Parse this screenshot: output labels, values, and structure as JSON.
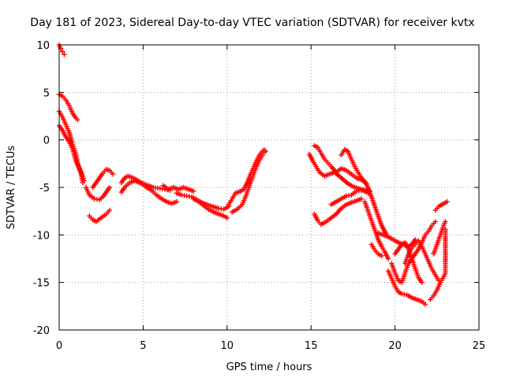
{
  "chart_data": {
    "type": "scatter",
    "title": "Day 181 of 2023, Sidereal Day-to-day VTEC variation (SDTVAR) for receiver kvtx",
    "xlabel": "GPS time / hours",
    "ylabel": "SDTVAR / TECUs",
    "xlim": [
      0,
      25
    ],
    "ylim": [
      -20,
      10
    ],
    "xticks": [
      "0",
      "5",
      "10",
      "15",
      "20",
      "25"
    ],
    "yticks": [
      "10",
      "5",
      "0",
      "-5",
      "-10",
      "-15",
      "-20"
    ],
    "grid": true,
    "marker": "plus",
    "color": "#ff0000",
    "series": [
      {
        "values": [
          [
            0.0,
            10.0
          ],
          [
            0.1,
            9.6
          ],
          [
            0.2,
            9.3
          ],
          [
            0.3,
            9.0
          ]
        ]
      },
      {
        "values": [
          [
            0.0,
            4.8
          ],
          [
            0.2,
            4.6
          ],
          [
            0.4,
            4.2
          ],
          [
            0.6,
            3.6
          ],
          [
            0.8,
            2.8
          ],
          [
            1.0,
            2.3
          ],
          [
            1.1,
            2.1
          ]
        ]
      },
      {
        "values": [
          [
            0.0,
            3.0
          ],
          [
            0.2,
            2.4
          ],
          [
            0.4,
            1.6
          ],
          [
            0.6,
            0.8
          ],
          [
            0.8,
            -0.5
          ],
          [
            1.0,
            -1.5
          ],
          [
            1.1,
            -2.5
          ],
          [
            1.3,
            -3.5
          ],
          [
            1.4,
            -4.5
          ]
        ]
      },
      {
        "values": [
          [
            0.0,
            1.5
          ],
          [
            0.2,
            1.0
          ],
          [
            0.4,
            0.3
          ],
          [
            0.6,
            -0.2
          ],
          [
            0.8,
            -1.0
          ],
          [
            1.0,
            -2.2
          ],
          [
            1.2,
            -3.0
          ],
          [
            1.4,
            -3.8
          ],
          [
            1.5,
            -4.3
          ]
        ]
      },
      {
        "values": [
          [
            1.6,
            -5.0
          ],
          [
            1.8,
            -5.8
          ],
          [
            2.1,
            -6.2
          ],
          [
            2.4,
            -6.3
          ],
          [
            2.6,
            -6.0
          ],
          [
            2.8,
            -5.5
          ],
          [
            3.0,
            -5.0
          ]
        ]
      },
      {
        "values": [
          [
            2.0,
            -5.0
          ],
          [
            2.2,
            -4.5
          ],
          [
            2.4,
            -4.0
          ],
          [
            2.6,
            -3.5
          ],
          [
            2.8,
            -3.1
          ],
          [
            3.0,
            -3.2
          ],
          [
            3.2,
            -3.6
          ]
        ]
      },
      {
        "values": [
          [
            1.8,
            -8.0
          ],
          [
            2.0,
            -8.4
          ],
          [
            2.2,
            -8.6
          ],
          [
            2.5,
            -8.2
          ],
          [
            2.8,
            -7.8
          ],
          [
            3.0,
            -7.4
          ]
        ]
      },
      {
        "values": [
          [
            3.7,
            -4.5
          ],
          [
            3.9,
            -4.0
          ],
          [
            4.1,
            -3.8
          ],
          [
            4.4,
            -4.0
          ],
          [
            4.7,
            -4.3
          ],
          [
            5.0,
            -4.6
          ],
          [
            5.3,
            -4.8
          ],
          [
            5.6,
            -5.0
          ],
          [
            6.0,
            -5.1
          ],
          [
            6.3,
            -5.2
          ],
          [
            6.6,
            -5.3
          ]
        ]
      },
      {
        "values": [
          [
            3.7,
            -5.5
          ],
          [
            3.9,
            -5.0
          ],
          [
            4.2,
            -4.5
          ],
          [
            4.5,
            -4.3
          ],
          [
            4.9,
            -4.6
          ],
          [
            5.2,
            -5.0
          ],
          [
            5.5,
            -5.3
          ],
          [
            5.8,
            -5.8
          ],
          [
            6.1,
            -6.2
          ],
          [
            6.4,
            -6.5
          ],
          [
            6.7,
            -6.7
          ],
          [
            7.0,
            -6.5
          ]
        ]
      },
      {
        "values": [
          [
            6.2,
            -4.8
          ],
          [
            6.5,
            -5.2
          ],
          [
            6.8,
            -5.0
          ],
          [
            7.1,
            -5.2
          ],
          [
            7.4,
            -5.0
          ],
          [
            7.7,
            -5.2
          ],
          [
            8.0,
            -5.4
          ]
        ]
      },
      {
        "values": [
          [
            7.0,
            -5.6
          ],
          [
            7.3,
            -5.8
          ],
          [
            7.6,
            -5.9
          ],
          [
            7.9,
            -6.0
          ],
          [
            8.2,
            -6.3
          ],
          [
            8.5,
            -6.6
          ],
          [
            8.8,
            -6.8
          ],
          [
            9.1,
            -7.0
          ],
          [
            9.5,
            -7.2
          ],
          [
            9.8,
            -7.3
          ],
          [
            10.1,
            -7.0
          ]
        ]
      },
      {
        "values": [
          [
            8.0,
            -6.2
          ],
          [
            8.3,
            -6.5
          ],
          [
            8.6,
            -6.9
          ],
          [
            8.9,
            -7.3
          ],
          [
            9.2,
            -7.6
          ],
          [
            9.5,
            -7.8
          ],
          [
            9.8,
            -8.0
          ],
          [
            10.0,
            -8.2
          ]
        ]
      },
      {
        "values": [
          [
            10.1,
            -6.8
          ],
          [
            10.3,
            -6.2
          ],
          [
            10.5,
            -5.6
          ],
          [
            10.8,
            -5.4
          ],
          [
            11.0,
            -5.2
          ],
          [
            11.2,
            -4.5
          ],
          [
            11.4,
            -3.6
          ],
          [
            11.6,
            -2.8
          ],
          [
            11.8,
            -2.0
          ],
          [
            12.0,
            -1.4
          ],
          [
            12.2,
            -1.0
          ],
          [
            12.3,
            -1.2
          ]
        ]
      },
      {
        "values": [
          [
            10.3,
            -7.6
          ],
          [
            10.6,
            -7.3
          ],
          [
            10.9,
            -6.8
          ],
          [
            11.1,
            -6.0
          ],
          [
            11.3,
            -5.0
          ],
          [
            11.5,
            -4.0
          ],
          [
            11.7,
            -3.0
          ],
          [
            11.9,
            -2.2
          ],
          [
            12.1,
            -1.6
          ],
          [
            12.2,
            -1.3
          ]
        ]
      },
      {
        "values": [
          [
            15.2,
            -0.6
          ],
          [
            15.4,
            -0.8
          ],
          [
            15.6,
            -1.4
          ],
          [
            15.8,
            -2.0
          ],
          [
            16.0,
            -2.4
          ],
          [
            16.2,
            -2.8
          ],
          [
            16.5,
            -3.4
          ],
          [
            16.8,
            -3.0
          ],
          [
            17.1,
            -3.2
          ],
          [
            17.4,
            -3.6
          ],
          [
            17.7,
            -4.0
          ],
          [
            18.0,
            -4.2
          ],
          [
            18.3,
            -4.6
          ]
        ]
      },
      {
        "values": [
          [
            14.9,
            -1.5
          ],
          [
            15.1,
            -2.2
          ],
          [
            15.3,
            -2.8
          ],
          [
            15.5,
            -3.4
          ],
          [
            15.8,
            -3.8
          ],
          [
            16.1,
            -3.6
          ],
          [
            16.4,
            -3.4
          ],
          [
            16.8,
            -4.0
          ],
          [
            17.2,
            -4.6
          ],
          [
            17.6,
            -5.0
          ],
          [
            18.0,
            -5.2
          ],
          [
            18.4,
            -5.6
          ]
        ]
      },
      {
        "values": [
          [
            15.2,
            -7.8
          ],
          [
            15.4,
            -8.5
          ],
          [
            15.6,
            -8.9
          ],
          [
            15.9,
            -8.6
          ],
          [
            16.2,
            -8.2
          ],
          [
            16.5,
            -7.8
          ],
          [
            16.8,
            -7.2
          ],
          [
            17.1,
            -6.8
          ],
          [
            17.4,
            -6.6
          ],
          [
            17.7,
            -6.4
          ],
          [
            18.0,
            -6.2
          ]
        ]
      },
      {
        "values": [
          [
            16.2,
            -6.8
          ],
          [
            16.5,
            -6.5
          ],
          [
            16.8,
            -6.2
          ],
          [
            17.1,
            -5.9
          ],
          [
            17.4,
            -5.8
          ],
          [
            17.7,
            -5.4
          ],
          [
            18.0,
            -5.3
          ],
          [
            18.3,
            -5.2
          ],
          [
            18.5,
            -5.4
          ]
        ]
      },
      {
        "values": [
          [
            16.8,
            -1.6
          ],
          [
            17.0,
            -1.0
          ],
          [
            17.2,
            -1.2
          ],
          [
            17.4,
            -2.0
          ],
          [
            17.6,
            -2.8
          ],
          [
            17.8,
            -3.4
          ],
          [
            18.0,
            -4.0
          ],
          [
            18.3,
            -4.6
          ],
          [
            18.6,
            -6.0
          ],
          [
            18.9,
            -7.5
          ],
          [
            19.2,
            -9.0
          ],
          [
            19.5,
            -10.0
          ]
        ]
      },
      {
        "values": [
          [
            18.2,
            -6.5
          ],
          [
            18.4,
            -7.5
          ],
          [
            18.6,
            -8.5
          ],
          [
            18.8,
            -9.5
          ],
          [
            19.0,
            -10.5
          ],
          [
            19.2,
            -11.2
          ],
          [
            19.4,
            -11.8
          ],
          [
            19.6,
            -12.5
          ]
        ]
      },
      {
        "values": [
          [
            18.6,
            -11.0
          ],
          [
            18.8,
            -11.6
          ],
          [
            19.0,
            -12.0
          ],
          [
            19.2,
            -12.2
          ]
        ]
      },
      {
        "values": [
          [
            19.0,
            -9.8
          ],
          [
            19.3,
            -10.0
          ],
          [
            19.6,
            -10.2
          ],
          [
            19.9,
            -10.5
          ],
          [
            20.2,
            -10.8
          ],
          [
            20.5,
            -11.0
          ],
          [
            20.8,
            -11.2
          ],
          [
            21.0,
            -11.0
          ],
          [
            21.2,
            -10.5
          ]
        ]
      },
      {
        "values": [
          [
            19.6,
            -13.8
          ],
          [
            19.8,
            -14.6
          ],
          [
            20.0,
            -15.4
          ],
          [
            20.2,
            -16.0
          ],
          [
            20.4,
            -16.2
          ],
          [
            20.7,
            -16.3
          ],
          [
            21.0,
            -16.6
          ],
          [
            21.3,
            -16.8
          ],
          [
            21.6,
            -17.0
          ],
          [
            21.8,
            -17.3
          ]
        ]
      },
      {
        "values": [
          [
            19.8,
            -13.0
          ],
          [
            20.0,
            -14.0
          ],
          [
            20.2,
            -14.8
          ],
          [
            20.4,
            -15.0
          ],
          [
            20.6,
            -14.0
          ],
          [
            20.8,
            -13.0
          ],
          [
            21.0,
            -12.5
          ],
          [
            21.2,
            -12.0
          ],
          [
            21.4,
            -11.5
          ],
          [
            21.6,
            -10.8
          ],
          [
            21.8,
            -10.0
          ],
          [
            22.0,
            -9.6
          ],
          [
            22.2,
            -9.0
          ],
          [
            22.4,
            -8.6
          ]
        ]
      },
      {
        "values": [
          [
            20.0,
            -12.0
          ],
          [
            20.2,
            -11.5
          ],
          [
            20.4,
            -11.0
          ],
          [
            20.6,
            -10.8
          ],
          [
            20.8,
            -11.5
          ],
          [
            21.0,
            -12.5
          ],
          [
            21.2,
            -13.5
          ],
          [
            21.4,
            -14.5
          ],
          [
            21.6,
            -15.0
          ]
        ]
      },
      {
        "values": [
          [
            20.6,
            -13.0
          ],
          [
            20.8,
            -12.0
          ],
          [
            21.0,
            -11.4
          ],
          [
            21.2,
            -11.0
          ],
          [
            21.4,
            -10.6
          ],
          [
            21.6,
            -11.2
          ],
          [
            21.8,
            -12.0
          ],
          [
            22.0,
            -12.8
          ],
          [
            22.2,
            -13.6
          ],
          [
            22.4,
            -14.2
          ],
          [
            22.6,
            -14.8
          ],
          [
            22.7,
            -15.0
          ]
        ]
      },
      {
        "values": [
          [
            22.1,
            -16.8
          ],
          [
            22.3,
            -16.4
          ],
          [
            22.5,
            -15.8
          ],
          [
            22.7,
            -15.0
          ],
          [
            22.9,
            -14.4
          ],
          [
            23.0,
            -14.0
          ],
          [
            23.0,
            -12.8
          ],
          [
            23.0,
            -11.5
          ],
          [
            23.0,
            -10.2
          ],
          [
            23.0,
            -9.4
          ]
        ]
      },
      {
        "values": [
          [
            22.4,
            -7.4
          ],
          [
            22.6,
            -7.0
          ],
          [
            22.8,
            -6.8
          ],
          [
            23.0,
            -6.6
          ],
          [
            23.1,
            -6.5
          ]
        ]
      },
      {
        "values": [
          [
            22.3,
            -12.0
          ],
          [
            22.5,
            -11.0
          ],
          [
            22.7,
            -10.0
          ],
          [
            22.9,
            -9.0
          ],
          [
            23.0,
            -8.6
          ]
        ]
      }
    ]
  }
}
